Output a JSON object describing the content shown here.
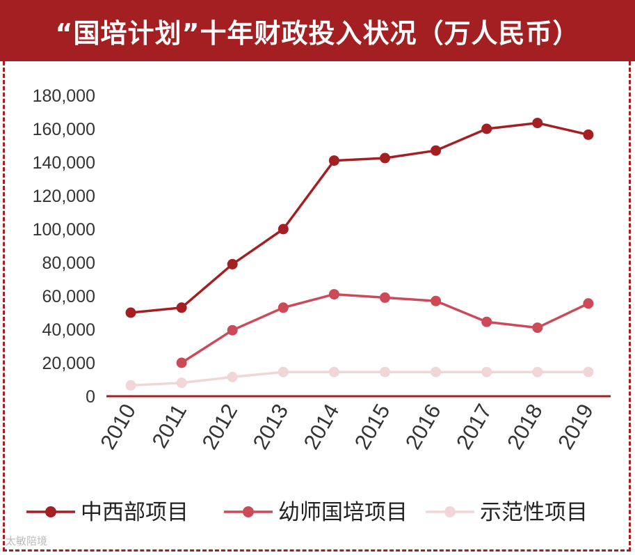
{
  "chart_data": {
    "type": "line",
    "title": "“国培计划”十年财政投入状况（万人民币）",
    "categories": [
      "2010",
      "2011",
      "2012",
      "2013",
      "2014",
      "2015",
      "2016",
      "2017",
      "2018",
      "2019"
    ],
    "ylim": [
      0,
      180000
    ],
    "yticks": [
      "180,000",
      "160,000",
      "140,000",
      "120,000",
      "100,000",
      "80,000",
      "60,000",
      "40,000",
      "20,000",
      "0"
    ],
    "grid": false,
    "legend_position": "bottom",
    "series": [
      {
        "name": "中西部项目",
        "color": "#a41f22",
        "values": [
          50000,
          53000,
          79000,
          100000,
          141000,
          142500,
          147000,
          160000,
          163500,
          156500
        ]
      },
      {
        "name": "幼师国培项目",
        "color": "#cc4a58",
        "values": [
          null,
          20000,
          39500,
          53000,
          61000,
          59000,
          57000,
          44500,
          41000,
          55500
        ]
      },
      {
        "name": "示范性项目",
        "color": "#f0d6d6",
        "values": [
          6500,
          8000,
          11500,
          14500,
          14500,
          14500,
          14500,
          14500,
          14500,
          14500
        ]
      }
    ]
  },
  "watermark": "太敏陪境"
}
